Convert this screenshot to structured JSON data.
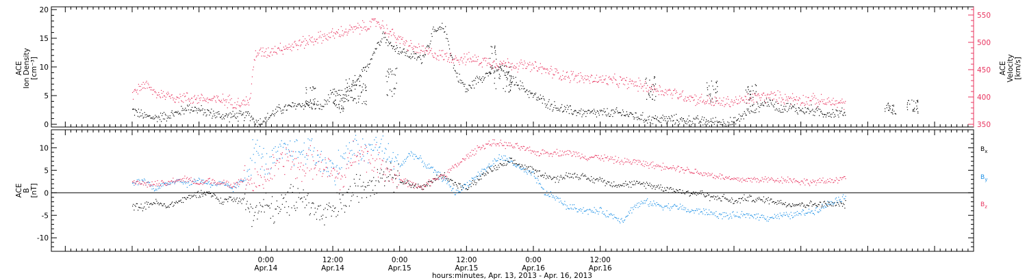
{
  "chart_data": [
    {
      "type": "scatter",
      "panel": "top",
      "ylabel_left_lines": [
        "ACE",
        "Ion Density",
        "[cm⁻³]"
      ],
      "ylabel_right_lines": [
        "ACE",
        "Velocity",
        "[km/s]"
      ],
      "ylim_left": [
        0,
        20
      ],
      "ylim_right": [
        350,
        560
      ],
      "yticks_left": [
        "0",
        "5",
        "10",
        "15",
        "20"
      ],
      "yticks_right": [
        "350",
        "400",
        "450",
        "500",
        "550"
      ],
      "colors": {
        "density": "#000000",
        "velocity": "#e8335e"
      },
      "x_units": "hours since 2013-04-13 00:00",
      "series": [
        {
          "axis": "left",
          "color": "#000000",
          "x": [
            0,
            2,
            4,
            6,
            8,
            10,
            12,
            14,
            16,
            18,
            20,
            21,
            22,
            23,
            24,
            26,
            28,
            30,
            32,
            34,
            36,
            38,
            40,
            42,
            44,
            45,
            46,
            48,
            50,
            52,
            54,
            56,
            58,
            60,
            62,
            64,
            66,
            68,
            70,
            72,
            74,
            76,
            78,
            80,
            82,
            84,
            86,
            88,
            90,
            92,
            94,
            96,
            98,
            100,
            102,
            104,
            106,
            108,
            110,
            112,
            114,
            116,
            118,
            120,
            122,
            124,
            126,
            128
          ],
          "y": [
            2.5,
            1.5,
            1.2,
            1.5,
            2.0,
            3.0,
            2.5,
            2.0,
            1.5,
            1.5,
            1.5,
            1.8,
            0.5,
            0.5,
            1.0,
            2.5,
            3.0,
            3.5,
            3.5,
            3.0,
            5.5,
            5.0,
            7.0,
            10.0,
            14.0,
            16.0,
            14.0,
            13.0,
            12.0,
            11.5,
            16.0,
            17.0,
            9.0,
            6.0,
            8.0,
            9.0,
            10.0,
            8.0,
            6.5,
            5.0,
            4.0,
            3.0,
            2.5,
            2.2,
            2.0,
            2.0,
            2.0,
            2.0,
            1.6,
            1.0,
            1.0,
            0.9,
            0.8,
            0.7,
            0.6,
            0.5,
            0.4,
            0.3,
            2.0,
            3.0,
            4.0,
            3.0,
            3.0,
            2.5,
            2.5,
            2.0,
            2.0,
            2.0
          ],
          "extra_spikes": [
            {
              "x": 32,
              "y": 6.0
            },
            {
              "x": 37,
              "y": 4.0
            },
            {
              "x": 39,
              "y": 8.0
            },
            {
              "x": 41,
              "y": 7.0
            },
            {
              "x": 46.5,
              "y": 9.0
            },
            {
              "x": 65,
              "y": 12.5
            },
            {
              "x": 67,
              "y": 10.0
            },
            {
              "x": 93,
              "y": 8.0
            },
            {
              "x": 104,
              "y": 7.0
            },
            {
              "x": 111,
              "y": 6.5
            },
            {
              "x": 136,
              "y": 3.5
            },
            {
              "x": 140,
              "y": 4.0
            }
          ]
        },
        {
          "axis": "right",
          "color": "#e8335e",
          "x": [
            0,
            2,
            4,
            6,
            8,
            10,
            12,
            14,
            16,
            18,
            20,
            21,
            22,
            24,
            26,
            28,
            30,
            32,
            34,
            36,
            38,
            40,
            42,
            44,
            46,
            48,
            50,
            52,
            54,
            56,
            58,
            60,
            62,
            64,
            66,
            68,
            70,
            72,
            74,
            76,
            78,
            80,
            82,
            84,
            86,
            88,
            90,
            92,
            94,
            96,
            98,
            100,
            102,
            104,
            106,
            108,
            110,
            112,
            114,
            116,
            118,
            120,
            122,
            124,
            126,
            128
          ],
          "y": [
            405,
            425,
            408,
            404,
            400,
            398,
            398,
            395,
            395,
            392,
            390,
            392,
            480,
            482,
            490,
            492,
            498,
            505,
            510,
            515,
            520,
            525,
            530,
            538,
            520,
            505,
            492,
            485,
            480,
            475,
            472,
            470,
            468,
            465,
            462,
            460,
            458,
            455,
            450,
            444,
            440,
            436,
            434,
            432,
            430,
            428,
            425,
            420,
            415,
            410,
            405,
            400,
            395,
            392,
            390,
            392,
            395,
            400,
            402,
            400,
            398,
            396,
            395,
            392,
            390,
            388
          ]
        }
      ]
    },
    {
      "type": "scatter",
      "panel": "bottom",
      "ylabel_lines": [
        "ACE",
        "B",
        "[nT]"
      ],
      "ylim": [
        -13,
        14
      ],
      "yticks": [
        "-10",
        "-5",
        "0",
        "5",
        "10"
      ],
      "legend": [
        "Bx",
        "By",
        "Bz"
      ],
      "colors": {
        "Bx": "#000000",
        "By": "#1a8fe6",
        "Bz": "#e8335e"
      },
      "x_units": "hours since 2013-04-13 00:00",
      "series": [
        {
          "name": "Bx",
          "color": "#000000",
          "x": [
            0,
            2,
            4,
            6,
            8,
            10,
            12,
            14,
            16,
            18,
            20,
            22,
            24,
            26,
            28,
            30,
            32,
            34,
            36,
            38,
            40,
            42,
            44,
            46,
            48,
            50,
            52,
            54,
            56,
            58,
            60,
            62,
            64,
            66,
            68,
            70,
            72,
            74,
            76,
            78,
            80,
            82,
            84,
            86,
            88,
            90,
            92,
            94,
            96,
            98,
            100,
            102,
            104,
            106,
            108,
            110,
            112,
            114,
            116,
            118,
            120,
            122,
            124,
            126,
            128
          ],
          "y": [
            -3,
            -3,
            -2,
            -3,
            -2,
            -1,
            0,
            0,
            -2,
            -1,
            -2,
            -4,
            -3,
            -4,
            -2,
            0,
            -3,
            -5,
            -4,
            -2,
            1,
            2,
            4,
            5,
            3,
            2,
            1,
            3,
            4,
            2,
            1,
            3,
            5,
            6,
            7,
            6,
            5,
            4,
            3,
            4,
            4,
            3,
            3,
            2,
            2,
            2,
            2,
            1.5,
            1,
            0.5,
            0,
            0,
            -1,
            -1,
            -2,
            -1,
            -1.5,
            -1.5,
            -2,
            -2.5,
            -2.5,
            -2.5,
            -2.5,
            -2.5,
            -2.5
          ]
        },
        {
          "name": "By",
          "color": "#1a8fe6",
          "x": [
            0,
            2,
            4,
            6,
            8,
            10,
            12,
            14,
            16,
            18,
            20,
            22,
            24,
            26,
            28,
            30,
            32,
            34,
            36,
            38,
            40,
            42,
            44,
            46,
            48,
            50,
            52,
            54,
            56,
            58,
            60,
            62,
            64,
            66,
            68,
            70,
            72,
            74,
            76,
            78,
            80,
            82,
            84,
            86,
            88,
            90,
            92,
            94,
            96,
            98,
            100,
            102,
            104,
            106,
            108,
            110,
            112,
            114,
            116,
            118,
            120,
            122,
            124,
            126,
            128
          ],
          "y": [
            2,
            3,
            1,
            2,
            3,
            2,
            3,
            2,
            2,
            1,
            3,
            10,
            6,
            8,
            10,
            9,
            10,
            7,
            5,
            8,
            10,
            9,
            11,
            8,
            6,
            9,
            7,
            5,
            3,
            0,
            2,
            4,
            6,
            8,
            7,
            5,
            4,
            0,
            -1,
            -3,
            -3.5,
            -4,
            -4,
            -5,
            -6,
            -3,
            -2,
            -2.5,
            -3,
            -3,
            -4,
            -4,
            -4.5,
            -5,
            -5,
            -5,
            -5,
            -5.5,
            -5,
            -5,
            -4.5,
            -4,
            -3,
            -1.5,
            -1
          ]
        },
        {
          "name": "Bz",
          "color": "#e8335e",
          "x": [
            0,
            2,
            4,
            6,
            8,
            10,
            12,
            14,
            16,
            18,
            20,
            22,
            24,
            26,
            28,
            30,
            32,
            34,
            36,
            38,
            40,
            42,
            44,
            46,
            48,
            50,
            52,
            54,
            56,
            58,
            60,
            62,
            64,
            66,
            68,
            70,
            72,
            74,
            76,
            78,
            80,
            82,
            84,
            86,
            88,
            90,
            92,
            94,
            96,
            98,
            100,
            102,
            104,
            106,
            108,
            110,
            112,
            114,
            116,
            118,
            120,
            122,
            124,
            126,
            128
          ],
          "y": [
            3,
            2,
            2,
            2,
            3,
            3,
            2,
            3,
            2,
            2,
            3,
            2,
            4,
            6,
            8,
            5,
            7,
            6,
            4,
            3,
            10,
            8,
            7,
            5,
            3,
            2,
            1,
            3,
            4,
            6,
            8,
            10,
            11,
            11,
            10.5,
            10,
            9,
            9,
            9,
            9,
            8.5,
            8,
            8,
            7.5,
            7,
            7,
            6.5,
            6,
            6,
            5.5,
            5,
            4.5,
            4,
            3.5,
            3,
            3,
            3,
            3,
            3,
            3,
            2.5,
            2.5,
            2.5,
            3,
            3.5
          ]
        }
      ]
    }
  ],
  "x_axis": {
    "range_hours": [
      -14.5,
      151
    ],
    "major_ticks": [
      {
        "x": 24,
        "time": "0:00",
        "date": "Apr.14"
      },
      {
        "x": 36,
        "time": "12:00",
        "date": "Apr.14"
      },
      {
        "x": 48,
        "time": "0:00",
        "date": "Apr.15"
      },
      {
        "x": 60,
        "time": "12:00",
        "date": "Apr.15"
      },
      {
        "x": 72,
        "time": "0:00",
        "date": "Apr.16"
      },
      {
        "x": 84,
        "time": "12:00",
        "date": "Apr.16"
      }
    ],
    "xlabel": "hours:minutes, Apr. 13, 2013 - Apr. 16, 2013"
  }
}
